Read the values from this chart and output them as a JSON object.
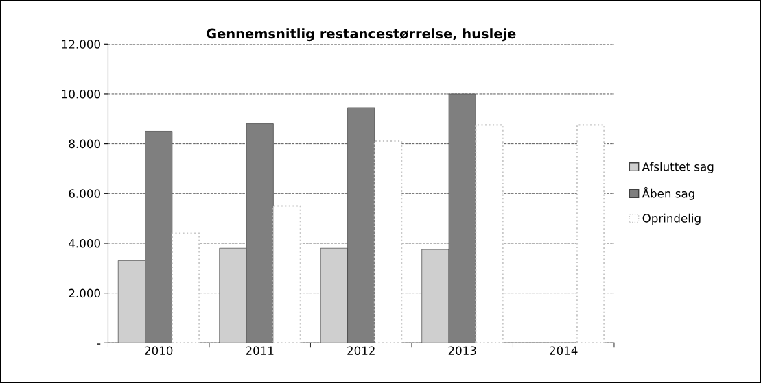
{
  "chart_data": {
    "type": "bar",
    "title": "Gennemsnitlig restancestørrelse, husleje",
    "categories": [
      "2010",
      "2011",
      "2012",
      "2013",
      "2014"
    ],
    "series": [
      {
        "name": "Afsluttet sag",
        "color": "#cfcfcf",
        "values": [
          3300,
          3800,
          3800,
          3750,
          null
        ]
      },
      {
        "name": "Åben sag",
        "color": "#7f7f7f",
        "values": [
          8500,
          8800,
          9450,
          10000,
          null
        ]
      },
      {
        "name": "Oprindelig",
        "color": "#c8c8c8",
        "line_style": "dotted",
        "values": [
          4400,
          5500,
          8100,
          8750,
          8750
        ]
      }
    ],
    "ylim": [
      0,
      12000
    ],
    "yticks": [
      {
        "value": 0,
        "label": "-"
      },
      {
        "value": 2000,
        "label": "2.000"
      },
      {
        "value": 4000,
        "label": "4.000"
      },
      {
        "value": 6000,
        "label": "6.000"
      },
      {
        "value": 8000,
        "label": "8.000"
      },
      {
        "value": 10000,
        "label": "10.000"
      },
      {
        "value": 12000,
        "label": "12.000"
      }
    ],
    "grid": "y",
    "legend": "right"
  }
}
